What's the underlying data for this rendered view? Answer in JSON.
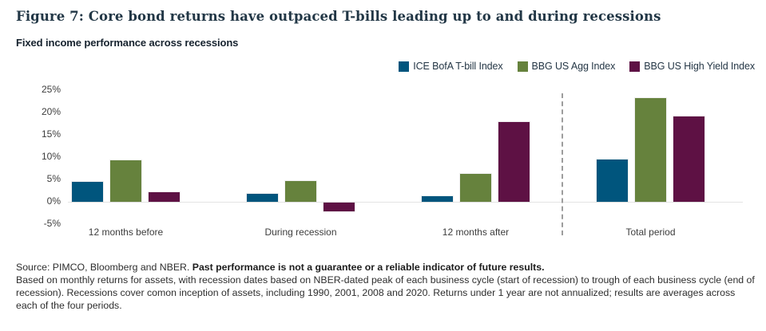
{
  "header": {
    "title": "Figure 7: Core bond returns have outpaced T-bills leading up to and during recessions",
    "subtitle": "Fixed income performance across recessions"
  },
  "chart_data": {
    "type": "bar",
    "title": "Fixed income performance across recessions",
    "categories": [
      "12 months before",
      "During recession",
      "12 months after",
      "Total period"
    ],
    "series": [
      {
        "name": "ICE BofA T-bill Index",
        "color": "#00557D",
        "values": [
          4.5,
          1.7,
          1.3,
          9.5
        ]
      },
      {
        "name": "BBG US Agg Index",
        "color": "#66823D",
        "values": [
          9.2,
          4.6,
          6.3,
          23.3
        ]
      },
      {
        "name": "BBG US High Yield Index",
        "color": "#5E1144",
        "values": [
          2.2,
          -2.0,
          17.9,
          19.1
        ]
      }
    ],
    "ylim": [
      -5,
      25
    ],
    "ytick_step": 5,
    "ytick_labels": [
      "25%",
      "20%",
      "15%",
      "10%",
      "5%",
      "0%",
      "-5%"
    ],
    "xlabel": "",
    "ylabel": "",
    "grid": false,
    "legend_position": "top-right",
    "divider_before_category": "Total period",
    "divider_style": "dashed"
  },
  "footnote": {
    "source": "Source: PIMCO, Bloomberg and NBER. ",
    "disclaimer": "Past performance is not a guarantee or a reliable indicator of future results.",
    "body": "Based on monthly returns for assets, with recession dates based on NBER-dated peak of each business cycle (start of recession) to trough of each business cycle (end of recession). Recessions cover comon inception of assets, including 1990, 2001, 2008 and 2020. Returns under 1 year are not annualized; results are averages across each of the four periods."
  }
}
